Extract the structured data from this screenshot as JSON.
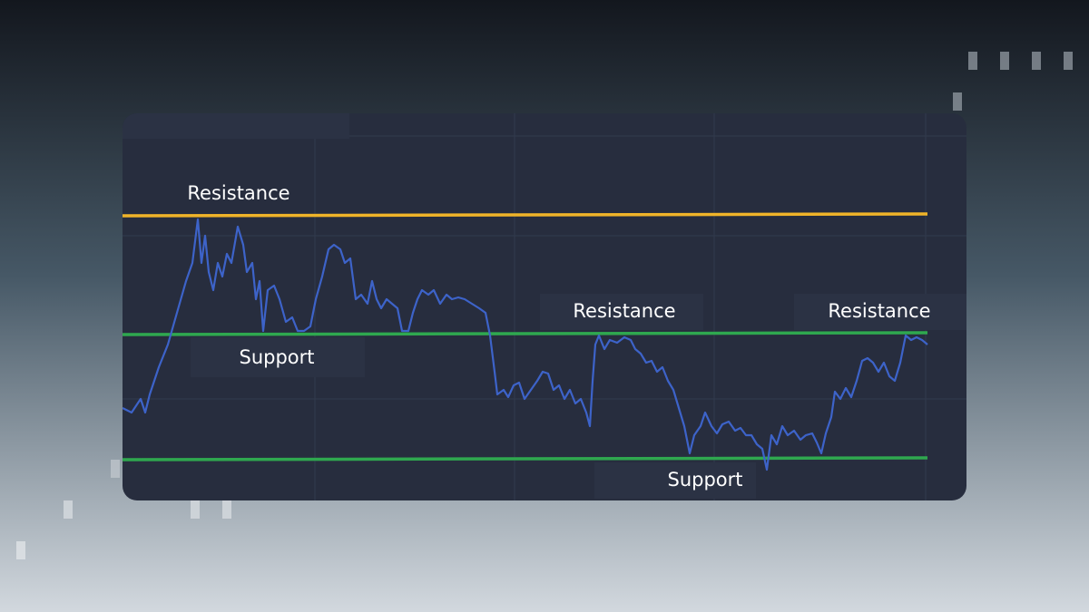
{
  "annotations": {
    "top_resistance": "Resistance",
    "upper_support": "Support",
    "middle_resistance": "Resistance",
    "right_resistance": "Resistance",
    "bottom_support": "Support"
  }
}
